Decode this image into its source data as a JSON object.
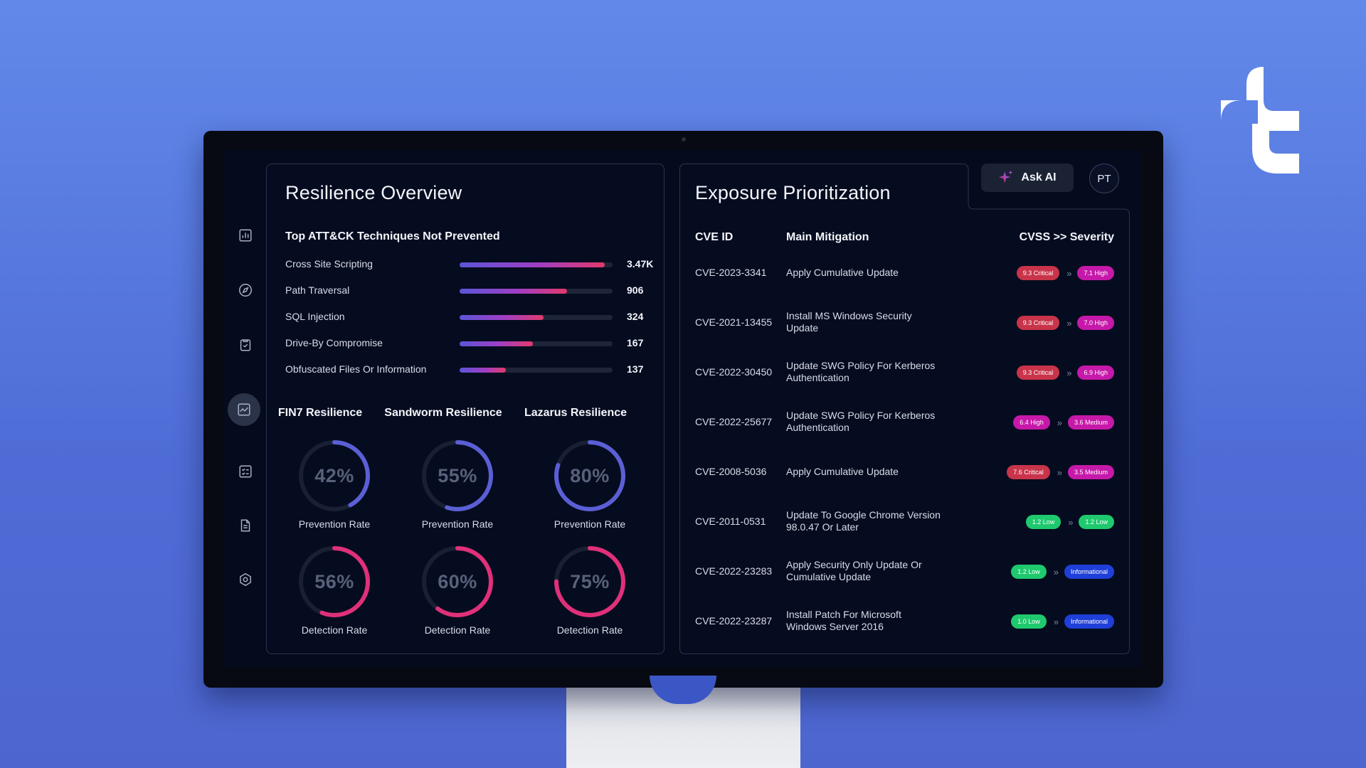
{
  "app": {
    "brand_logo_icon": "tt-logo-icon",
    "ask_ai_label": "Ask AI",
    "avatar_initials": "PT"
  },
  "sidebar": {
    "items": [
      {
        "icon": "bar-chart-icon",
        "active": false
      },
      {
        "icon": "compass-icon",
        "active": false
      },
      {
        "icon": "clipboard-check-icon",
        "active": false
      },
      {
        "icon": "line-chart-icon",
        "active": true
      },
      {
        "icon": "checklist-icon",
        "active": false
      },
      {
        "icon": "document-icon",
        "active": false
      },
      {
        "icon": "hexagon-icon",
        "active": false
      }
    ]
  },
  "resilience": {
    "title": "Resilience Overview",
    "techniques_title": "Top ATT&CK Techniques Not Prevented",
    "techniques": [
      {
        "name": "Cross Site Scripting",
        "value": "3.47K",
        "fill": 0.95
      },
      {
        "name": "Path Traversal",
        "value": "906",
        "fill": 0.7
      },
      {
        "name": "SQL Injection",
        "value": "324",
        "fill": 0.55
      },
      {
        "name": "Drive-By Compromise",
        "value": "167",
        "fill": 0.48
      },
      {
        "name": "Obfuscated Files Or Information",
        "value": "137",
        "fill": 0.3
      }
    ],
    "groups": [
      {
        "title": "FIN7 Resilience",
        "prevention": 42,
        "prevention_text": "42%",
        "detection": 56,
        "detection_text": "56%"
      },
      {
        "title": "Sandworm Resilience",
        "prevention": 55,
        "prevention_text": "55%",
        "detection": 60,
        "detection_text": "60%"
      },
      {
        "title": "Lazarus Resilience",
        "prevention": 80,
        "prevention_text": "80%",
        "detection": 75,
        "detection_text": "75%"
      }
    ],
    "prevention_label": "Prevention Rate",
    "detection_label": "Detection Rate",
    "colors": {
      "prevention": "#5b5fd6",
      "detection": "#e0307a",
      "track": "#1a2033"
    }
  },
  "exposure": {
    "title": "Exposure Prioritization",
    "headers": {
      "cve": "CVE ID",
      "mitigation": "Main Mitigation",
      "severity": "CVSS >> Severity"
    },
    "arrow": "»",
    "rows": [
      {
        "cve": "CVE-2023-3341",
        "mitigation": "Apply Cumulative Update",
        "cvss": "9.3 Critical",
        "cvss_color": "#c8344a",
        "severity": "7.1 High",
        "severity_color": "#c619a9"
      },
      {
        "cve": "CVE-2021-13455",
        "mitigation": "Install MS Windows Security Update",
        "cvss": "9.3 Critical",
        "cvss_color": "#c8344a",
        "severity": "7.0 High",
        "severity_color": "#c619a9"
      },
      {
        "cve": "CVE-2022-30450",
        "mitigation": "Update SWG Policy For Kerberos Authentication",
        "cvss": "9.3 Critical",
        "cvss_color": "#c8344a",
        "severity": "6.9 High",
        "severity_color": "#c619a9"
      },
      {
        "cve": "CVE-2022-25677",
        "mitigation": "Update SWG Policy For Kerberos Authentication",
        "cvss": "6.4 High",
        "cvss_color": "#c619a9",
        "severity": "3.6 Medium",
        "severity_color": "#c619a9"
      },
      {
        "cve": "CVE-2008-5036",
        "mitigation": "Apply Cumulative Update",
        "cvss": "7.6 Critical",
        "cvss_color": "#c8344a",
        "severity": "3.5 Medium",
        "severity_color": "#c619a9"
      },
      {
        "cve": "CVE-2011-0531",
        "mitigation": "Update To Google Chrome Version 98.0.47 Or Later",
        "cvss": "1.2 Low",
        "cvss_color": "#1fc96e",
        "severity": "1.2 Low",
        "severity_color": "#1fc96e"
      },
      {
        "cve": "CVE-2022-23283",
        "mitigation": "Apply Security Only Update Or Cumulative Update",
        "cvss": "1.2 Low",
        "cvss_color": "#1fc96e",
        "severity": "Informational",
        "severity_color": "#1f3fd9"
      },
      {
        "cve": "CVE-2022-23287",
        "mitigation": "Install Patch For Microsoft Windows Server 2016",
        "cvss": "1.0 Low",
        "cvss_color": "#1fc96e",
        "severity": "Informational",
        "severity_color": "#1f3fd9"
      }
    ]
  }
}
